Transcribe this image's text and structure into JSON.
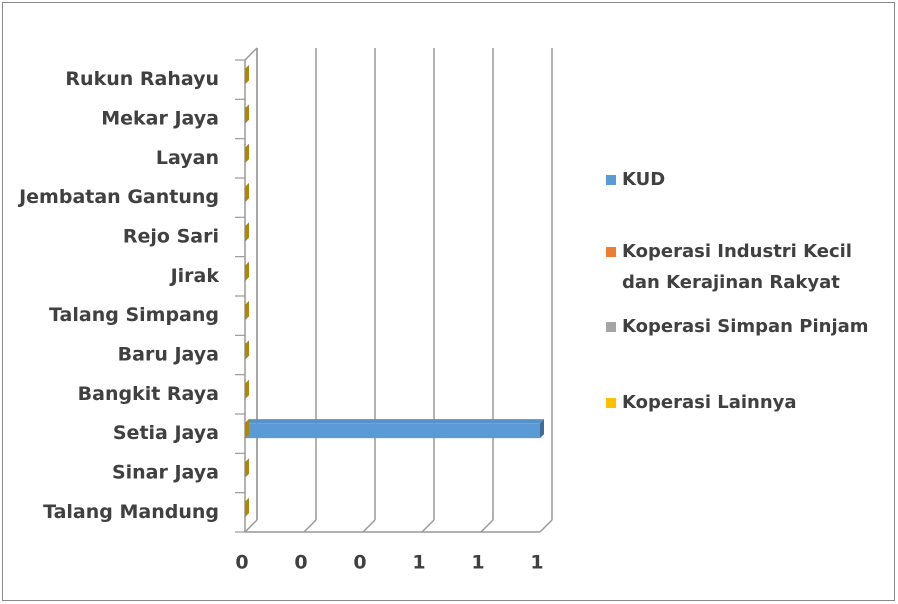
{
  "chart_data": {
    "type": "bar3d_horizontal",
    "categories": [
      "Talang Mandung",
      "Sinar Jaya",
      "Setia Jaya",
      "Bangkit Raya",
      "Baru Jaya",
      "Talang Simpang",
      "Jirak",
      "Rejo Sari",
      "Jembatan Gantung",
      "Layan",
      "Mekar Jaya",
      "Rukun Rahayu"
    ],
    "series": [
      {
        "name": "KUD",
        "color": "#5b9bd5",
        "values": [
          0,
          0,
          1,
          0,
          0,
          0,
          0,
          0,
          0,
          0,
          0,
          0
        ]
      },
      {
        "name": "Koperasi Industri Kecil dan Kerajinan Rakyat",
        "color": "#ed7d31",
        "values": [
          0,
          0,
          0,
          0,
          0,
          0,
          0,
          0,
          0,
          0,
          0,
          0
        ]
      },
      {
        "name": "Koperasi Simpan Pinjam",
        "color": "#a5a5a5",
        "values": [
          0,
          0,
          0,
          0,
          0,
          0,
          0,
          0,
          0,
          0,
          0,
          0
        ]
      },
      {
        "name": "Koperasi Lainnya",
        "color": "#ffc000",
        "values": [
          0,
          0,
          0,
          0,
          0,
          0,
          0,
          0,
          0,
          0,
          0,
          0
        ]
      }
    ],
    "xlim": [
      0,
      1
    ],
    "xticks": [
      0,
      {
        "value": 0.2,
        "label": "0"
      },
      {
        "value": 0.4,
        "label": "0"
      },
      {
        "value": 0.6,
        "label": "1"
      },
      {
        "value": 0.8,
        "label": "1"
      },
      {
        "value": 1,
        "label": "1"
      }
    ],
    "grid": true,
    "legend": "right"
  }
}
